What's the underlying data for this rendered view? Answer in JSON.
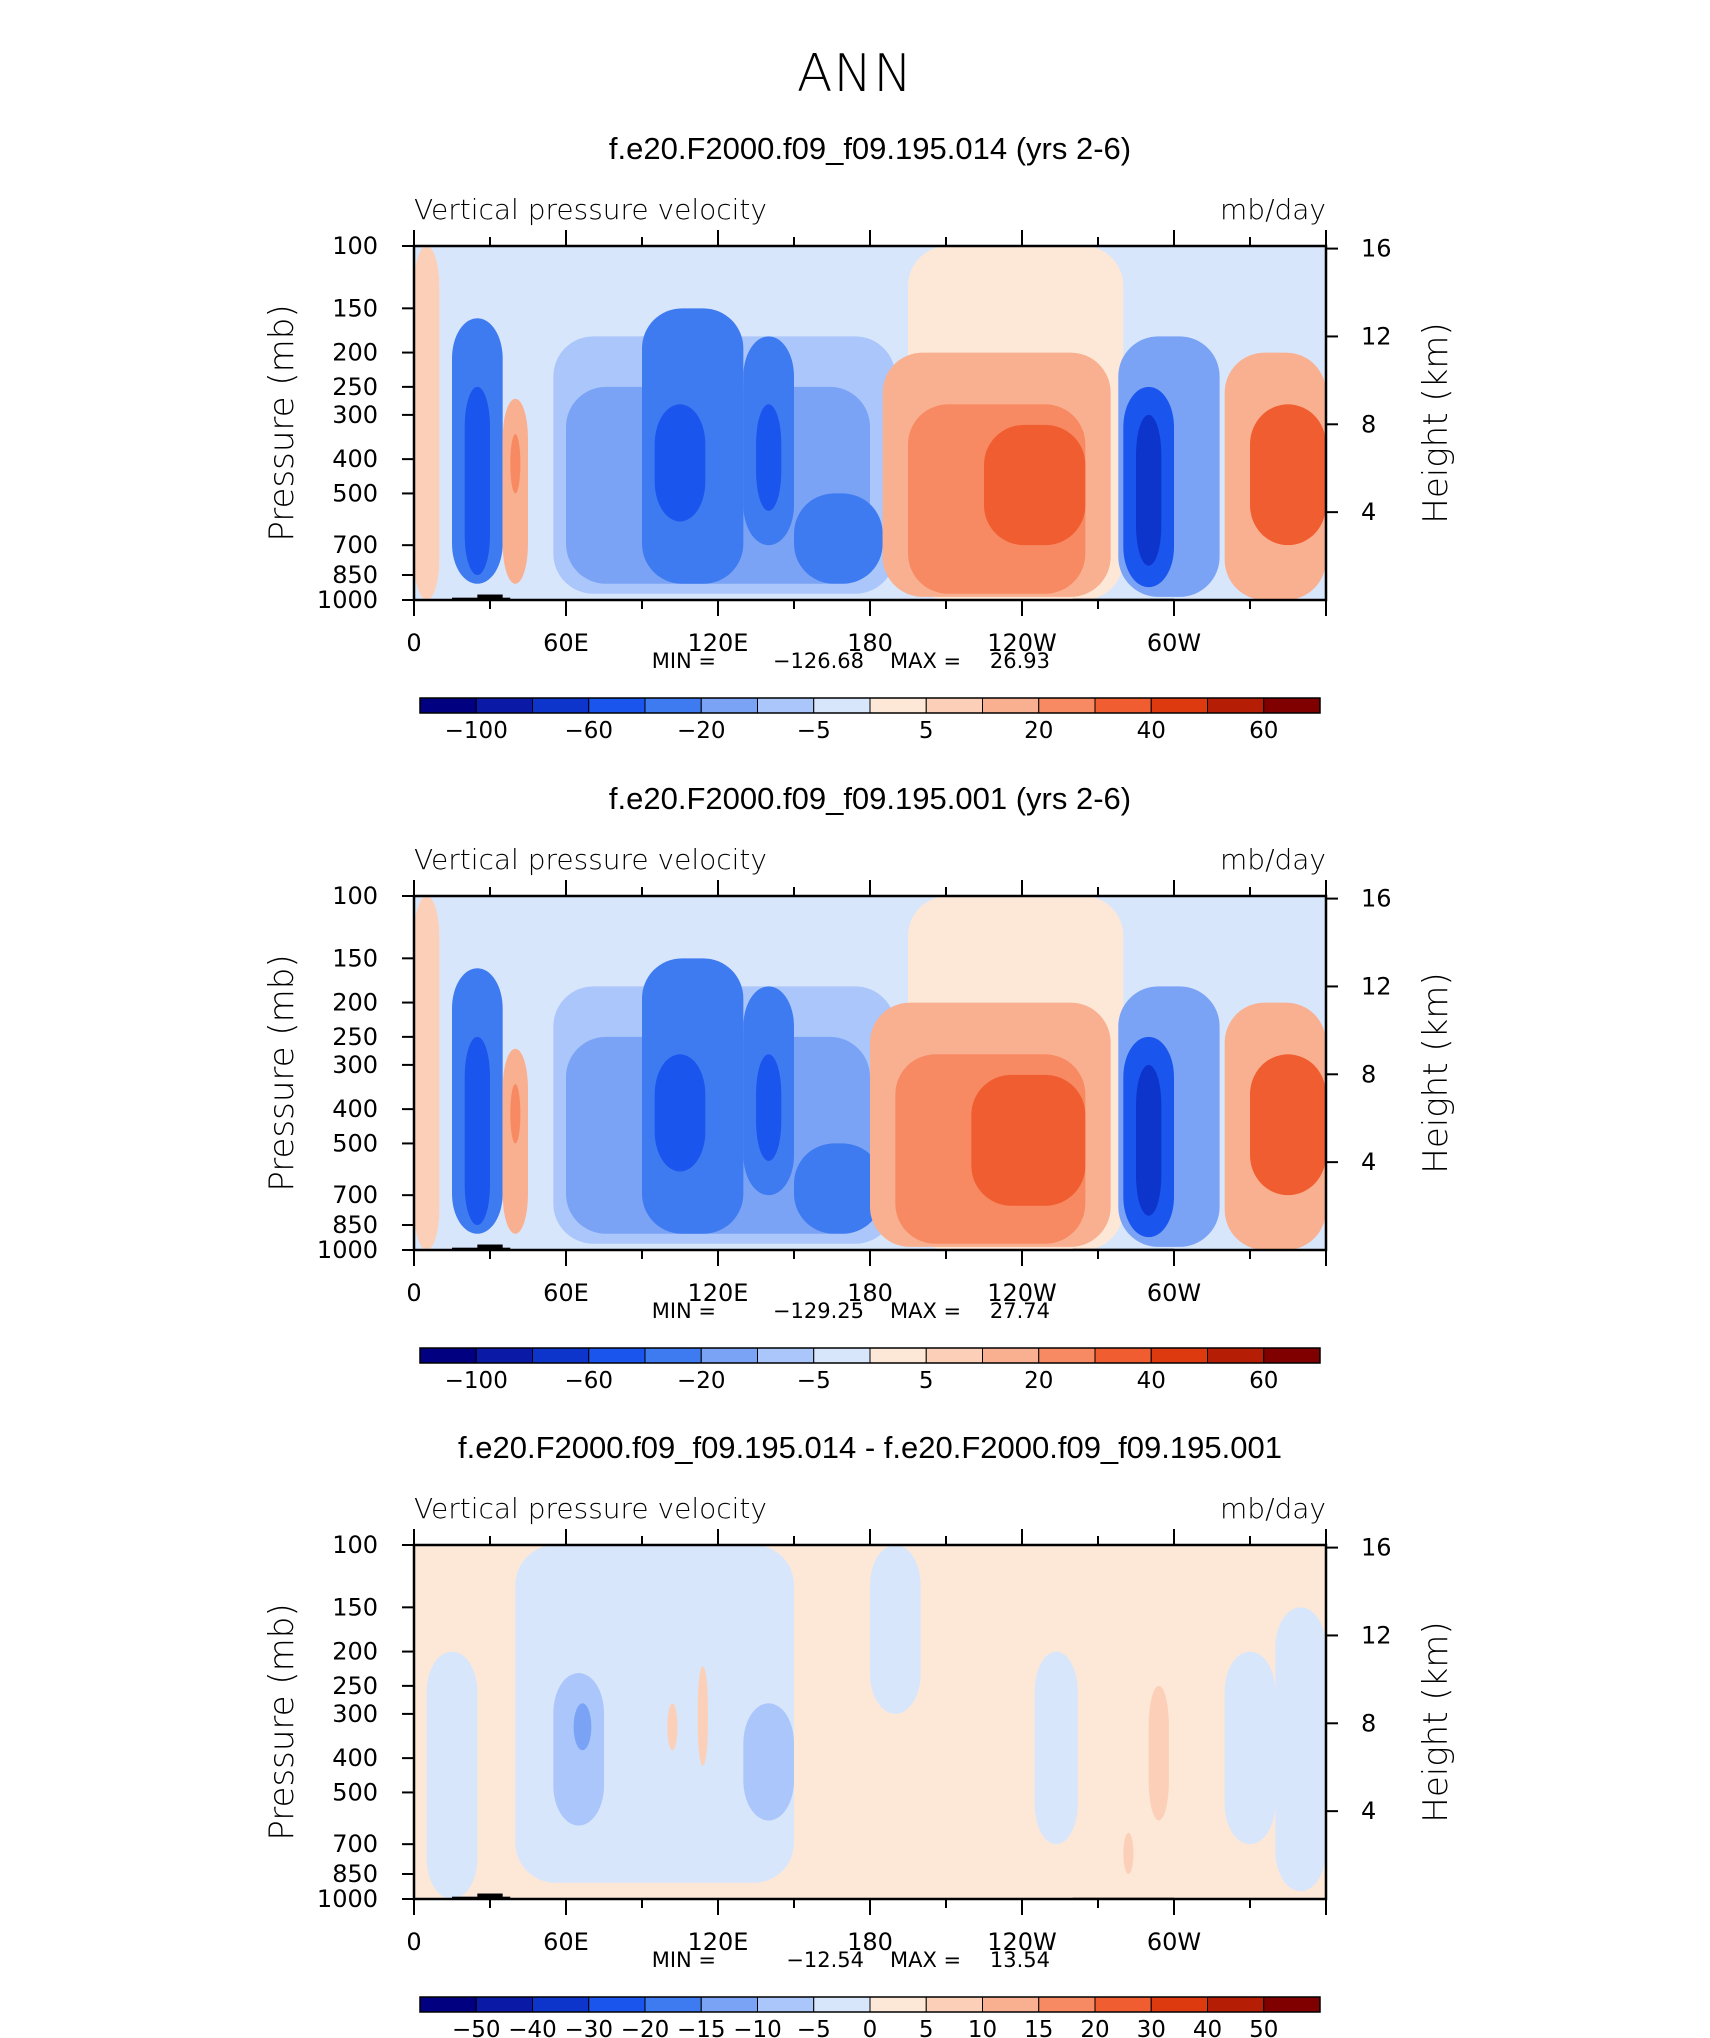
{
  "figure": {
    "title": "ANN"
  },
  "colors": {
    "cb10": [
      "#000080",
      "#0a1aa6",
      "#0d35cc",
      "#1a55ee",
      "#3f7bf0",
      "#7ba3f5",
      "#aac6fa",
      "#d8e6fc",
      "#fde8d8",
      "#fcd0b8",
      "#f9b090",
      "#f78a62",
      "#f05d30",
      "#dd3a10",
      "#b51e05",
      "#800000"
    ],
    "cbdiff": [
      "#000080",
      "#0a1aa6",
      "#0d35cc",
      "#1a55ee",
      "#3f7bf0",
      "#7ba3f5",
      "#aac6fa",
      "#d8e6fc",
      "#fde8d8",
      "#fcd0b8",
      "#f9b090",
      "#f78a62",
      "#f05d30",
      "#dd3a10",
      "#b51e05",
      "#800000"
    ],
    "terrain": "#000000"
  },
  "chart_data": [
    {
      "type": "heatmap",
      "title": "f.e20.F2000.f09_f09.195.014 (yrs 2-6)",
      "left_label": "Vertical pressure velocity",
      "right_label": "mb/day",
      "ylabel": "Pressure (mb)",
      "ylabel_right": "Height (km)",
      "x_ticks": [
        "0",
        "60E",
        "120E",
        "180",
        "120W",
        "60W"
      ],
      "x_tick_lon": [
        0,
        60,
        120,
        180,
        240,
        300
      ],
      "y_ticks": [
        "100",
        "150",
        "200",
        "250",
        "300",
        "400",
        "500",
        "700",
        "850",
        "1000"
      ],
      "y_tick_p": [
        100,
        150,
        200,
        250,
        300,
        400,
        500,
        700,
        850,
        1000
      ],
      "y_ticks_right": [
        "16",
        "12",
        "8",
        "4"
      ],
      "y_tick_right_km": [
        16,
        12,
        8,
        4
      ],
      "xlim": [
        0,
        360
      ],
      "ylim": [
        1000,
        100
      ],
      "stats": {
        "min_label": "MIN =",
        "min": "−126.68",
        "max_label": "MAX =",
        "max": "26.93"
      },
      "colorbar": {
        "levels": [
          -120,
          -100,
          -80,
          -60,
          -40,
          -20,
          -10,
          -5,
          0,
          5,
          10,
          20,
          30,
          40,
          50,
          60
        ],
        "labels": [
          "−100",
          "−60",
          "−20",
          "−5",
          "5",
          "20",
          "40",
          "60"
        ]
      },
      "cells": [
        {
          "lon": [
            0,
            10
          ],
          "p": [
            100,
            1000
          ],
          "v": 7
        },
        {
          "lon": [
            10,
            50
          ],
          "p": [
            100,
            160
          ],
          "v": -3
        },
        {
          "lon": [
            15,
            35
          ],
          "p": [
            160,
            900
          ],
          "v": -40
        },
        {
          "lon": [
            20,
            30
          ],
          "p": [
            250,
            850
          ],
          "v": -60
        },
        {
          "lon": [
            35,
            45
          ],
          "p": [
            270,
            900
          ],
          "v": 12
        },
        {
          "lon": [
            38,
            42
          ],
          "p": [
            340,
            500
          ],
          "v": 22
        },
        {
          "lon": [
            50,
            200
          ],
          "p": [
            100,
            180
          ],
          "v": -3
        },
        {
          "lon": [
            55,
            190
          ],
          "p": [
            180,
            960
          ],
          "v": -8
        },
        {
          "lon": [
            60,
            180
          ],
          "p": [
            250,
            900
          ],
          "v": -15
        },
        {
          "lon": [
            90,
            130
          ],
          "p": [
            150,
            900
          ],
          "v": -40
        },
        {
          "lon": [
            95,
            115
          ],
          "p": [
            280,
            600
          ],
          "v": -60
        },
        {
          "lon": [
            130,
            150
          ],
          "p": [
            180,
            700
          ],
          "v": -40
        },
        {
          "lon": [
            135,
            145
          ],
          "p": [
            280,
            560
          ],
          "v": -60
        },
        {
          "lon": [
            150,
            185
          ],
          "p": [
            500,
            900
          ],
          "v": -25
        },
        {
          "lon": [
            195,
            280
          ],
          "p": [
            100,
            1000
          ],
          "v": 3
        },
        {
          "lon": [
            185,
            275
          ],
          "p": [
            200,
            980
          ],
          "v": 12
        },
        {
          "lon": [
            195,
            265
          ],
          "p": [
            280,
            960
          ],
          "v": 22
        },
        {
          "lon": [
            225,
            265
          ],
          "p": [
            320,
            700
          ],
          "v": 35
        },
        {
          "lon": [
            278,
            318
          ],
          "p": [
            180,
            980
          ],
          "v": -20
        },
        {
          "lon": [
            280,
            300
          ],
          "p": [
            250,
            920
          ],
          "v": -50
        },
        {
          "lon": [
            285,
            295
          ],
          "p": [
            300,
            800
          ],
          "v": -70
        },
        {
          "lon": [
            320,
            360
          ],
          "p": [
            200,
            1000
          ],
          "v": 12
        },
        {
          "lon": [
            330,
            360
          ],
          "p": [
            280,
            700
          ],
          "v": 35
        }
      ]
    },
    {
      "type": "heatmap",
      "title": "f.e20.F2000.f09_f09.195.001 (yrs 2-6)",
      "left_label": "Vertical pressure velocity",
      "right_label": "mb/day",
      "ylabel": "Pressure (mb)",
      "ylabel_right": "Height (km)",
      "x_ticks": [
        "0",
        "60E",
        "120E",
        "180",
        "120W",
        "60W"
      ],
      "x_tick_lon": [
        0,
        60,
        120,
        180,
        240,
        300
      ],
      "y_ticks": [
        "100",
        "150",
        "200",
        "250",
        "300",
        "400",
        "500",
        "700",
        "850",
        "1000"
      ],
      "y_tick_p": [
        100,
        150,
        200,
        250,
        300,
        400,
        500,
        700,
        850,
        1000
      ],
      "y_ticks_right": [
        "16",
        "12",
        "8",
        "4"
      ],
      "y_tick_right_km": [
        16,
        12,
        8,
        4
      ],
      "xlim": [
        0,
        360
      ],
      "ylim": [
        1000,
        100
      ],
      "stats": {
        "min_label": "MIN =",
        "min": "−129.25",
        "max_label": "MAX =",
        "max": "27.74"
      },
      "colorbar": {
        "levels": [
          -120,
          -100,
          -80,
          -60,
          -40,
          -20,
          -10,
          -5,
          0,
          5,
          10,
          20,
          30,
          40,
          50,
          60
        ],
        "labels": [
          "−100",
          "−60",
          "−20",
          "−5",
          "5",
          "20",
          "40",
          "60"
        ]
      },
      "cells": [
        {
          "lon": [
            0,
            10
          ],
          "p": [
            100,
            1000
          ],
          "v": 7
        },
        {
          "lon": [
            10,
            50
          ],
          "p": [
            100,
            160
          ],
          "v": -3
        },
        {
          "lon": [
            15,
            35
          ],
          "p": [
            160,
            900
          ],
          "v": -40
        },
        {
          "lon": [
            20,
            30
          ],
          "p": [
            250,
            850
          ],
          "v": -60
        },
        {
          "lon": [
            35,
            45
          ],
          "p": [
            270,
            900
          ],
          "v": 12
        },
        {
          "lon": [
            38,
            42
          ],
          "p": [
            340,
            500
          ],
          "v": 22
        },
        {
          "lon": [
            50,
            200
          ],
          "p": [
            100,
            180
          ],
          "v": -3
        },
        {
          "lon": [
            55,
            190
          ],
          "p": [
            180,
            960
          ],
          "v": -8
        },
        {
          "lon": [
            60,
            180
          ],
          "p": [
            250,
            900
          ],
          "v": -15
        },
        {
          "lon": [
            90,
            130
          ],
          "p": [
            150,
            900
          ],
          "v": -40
        },
        {
          "lon": [
            95,
            115
          ],
          "p": [
            280,
            600
          ],
          "v": -60
        },
        {
          "lon": [
            130,
            150
          ],
          "p": [
            180,
            700
          ],
          "v": -40
        },
        {
          "lon": [
            135,
            145
          ],
          "p": [
            280,
            560
          ],
          "v": -60
        },
        {
          "lon": [
            150,
            185
          ],
          "p": [
            500,
            900
          ],
          "v": -25
        },
        {
          "lon": [
            195,
            280
          ],
          "p": [
            100,
            1000
          ],
          "v": 3
        },
        {
          "lon": [
            180,
            275
          ],
          "p": [
            200,
            980
          ],
          "v": 12
        },
        {
          "lon": [
            190,
            265
          ],
          "p": [
            280,
            960
          ],
          "v": 22
        },
        {
          "lon": [
            220,
            265
          ],
          "p": [
            320,
            750
          ],
          "v": 35
        },
        {
          "lon": [
            278,
            318
          ],
          "p": [
            180,
            980
          ],
          "v": -20
        },
        {
          "lon": [
            280,
            300
          ],
          "p": [
            250,
            920
          ],
          "v": -50
        },
        {
          "lon": [
            285,
            295
          ],
          "p": [
            300,
            800
          ],
          "v": -70
        },
        {
          "lon": [
            320,
            360
          ],
          "p": [
            200,
            1000
          ],
          "v": 12
        },
        {
          "lon": [
            330,
            360
          ],
          "p": [
            280,
            700
          ],
          "v": 35
        }
      ]
    },
    {
      "type": "heatmap",
      "title": "f.e20.F2000.f09_f09.195.014 - f.e20.F2000.f09_f09.195.001",
      "left_label": "Vertical pressure velocity",
      "right_label": "mb/day",
      "ylabel": "Pressure (mb)",
      "ylabel_right": "Height (km)",
      "x_ticks": [
        "0",
        "60E",
        "120E",
        "180",
        "120W",
        "60W"
      ],
      "x_tick_lon": [
        0,
        60,
        120,
        180,
        240,
        300
      ],
      "y_ticks": [
        "100",
        "150",
        "200",
        "250",
        "300",
        "400",
        "500",
        "700",
        "850",
        "1000"
      ],
      "y_tick_p": [
        100,
        150,
        200,
        250,
        300,
        400,
        500,
        700,
        850,
        1000
      ],
      "y_ticks_right": [
        "16",
        "12",
        "8",
        "4"
      ],
      "y_tick_right_km": [
        16,
        12,
        8,
        4
      ],
      "xlim": [
        0,
        360
      ],
      "ylim": [
        1000,
        100
      ],
      "stats": {
        "min_label": "MIN =",
        "min": "−12.54",
        "max_label": "MAX =",
        "max": "13.54"
      },
      "colorbar": {
        "levels": [
          -60,
          -50,
          -40,
          -30,
          -20,
          -15,
          -10,
          -5,
          0,
          5,
          10,
          15,
          20,
          30,
          40,
          50
        ],
        "labels": [
          "−50",
          "−40",
          "−30",
          "−20",
          "−15",
          "−10",
          "−5",
          "0",
          "5",
          "10",
          "15",
          "20",
          "30",
          "40",
          "50"
        ]
      },
      "cells": [
        {
          "lon": [
            0,
            360
          ],
          "p": [
            100,
            1000
          ],
          "v": 2
        },
        {
          "lon": [
            5,
            25
          ],
          "p": [
            200,
            1000
          ],
          "v": -2
        },
        {
          "lon": [
            40,
            150
          ],
          "p": [
            100,
            900
          ],
          "v": -2
        },
        {
          "lon": [
            55,
            75
          ],
          "p": [
            230,
            620
          ],
          "v": -7
        },
        {
          "lon": [
            63,
            70
          ],
          "p": [
            280,
            380
          ],
          "v": -12
        },
        {
          "lon": [
            100,
            104
          ],
          "p": [
            280,
            380
          ],
          "v": 7
        },
        {
          "lon": [
            112,
            116
          ],
          "p": [
            220,
            420
          ],
          "v": 7
        },
        {
          "lon": [
            130,
            150
          ],
          "p": [
            280,
            600
          ],
          "v": -7
        },
        {
          "lon": [
            180,
            200
          ],
          "p": [
            100,
            300
          ],
          "v": -2
        },
        {
          "lon": [
            245,
            262
          ],
          "p": [
            200,
            700
          ],
          "v": -2
        },
        {
          "lon": [
            290,
            298
          ],
          "p": [
            250,
            600
          ],
          "v": 7
        },
        {
          "lon": [
            280,
            284
          ],
          "p": [
            650,
            850
          ],
          "v": 7
        },
        {
          "lon": [
            320,
            340
          ],
          "p": [
            200,
            700
          ],
          "v": -2
        },
        {
          "lon": [
            340,
            360
          ],
          "p": [
            150,
            950
          ],
          "v": -2
        }
      ]
    }
  ]
}
